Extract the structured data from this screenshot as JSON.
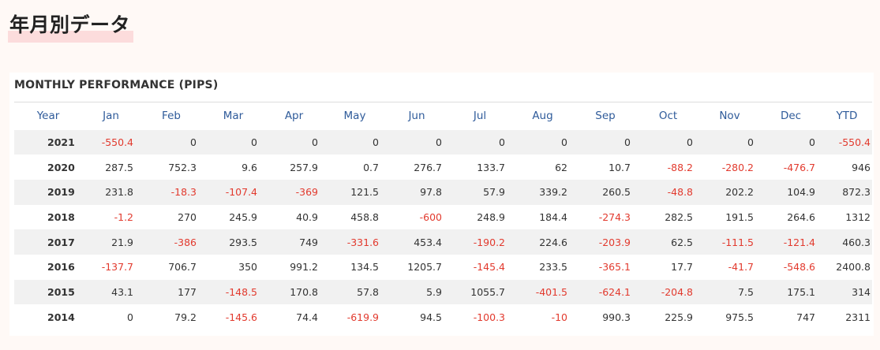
{
  "page_heading": "年月別データ",
  "panel_title": "MONTHLY PERFORMANCE (PIPS)",
  "colors": {
    "header_text": "#2f5b9a",
    "negative_text": "#e23a2e",
    "positive_text": "#333333",
    "stripe": "#f1f1f1",
    "heading_highlight": "#fcdcdc"
  },
  "table": {
    "columns": [
      "Year",
      "Jan",
      "Feb",
      "Mar",
      "Apr",
      "May",
      "Jun",
      "Jul",
      "Aug",
      "Sep",
      "Oct",
      "Nov",
      "Dec",
      "YTD"
    ],
    "rows": [
      [
        "2021",
        "-550.4",
        "0",
        "0",
        "0",
        "0",
        "0",
        "0",
        "0",
        "0",
        "0",
        "0",
        "0",
        "-550.4"
      ],
      [
        "2020",
        "287.5",
        "752.3",
        "9.6",
        "257.9",
        "0.7",
        "276.7",
        "133.7",
        "62",
        "10.7",
        "-88.2",
        "-280.2",
        "-476.7",
        "946"
      ],
      [
        "2019",
        "231.8",
        "-18.3",
        "-107.4",
        "-369",
        "121.5",
        "97.8",
        "57.9",
        "339.2",
        "260.5",
        "-48.8",
        "202.2",
        "104.9",
        "872.3"
      ],
      [
        "2018",
        "-1.2",
        "270",
        "245.9",
        "40.9",
        "458.8",
        "-600",
        "248.9",
        "184.4",
        "-274.3",
        "282.5",
        "191.5",
        "264.6",
        "1312"
      ],
      [
        "2017",
        "21.9",
        "-386",
        "293.5",
        "749",
        "-331.6",
        "453.4",
        "-190.2",
        "224.6",
        "-203.9",
        "62.5",
        "-111.5",
        "-121.4",
        "460.3"
      ],
      [
        "2016",
        "-137.7",
        "706.7",
        "350",
        "991.2",
        "134.5",
        "1205.7",
        "-145.4",
        "233.5",
        "-365.1",
        "17.7",
        "-41.7",
        "-548.6",
        "2400.8"
      ],
      [
        "2015",
        "43.1",
        "177",
        "-148.5",
        "170.8",
        "57.8",
        "5.9",
        "1055.7",
        "-401.5",
        "-624.1",
        "-204.8",
        "7.5",
        "175.1",
        "314"
      ],
      [
        "2014",
        "0",
        "79.2",
        "-145.6",
        "74.4",
        "-619.9",
        "94.5",
        "-100.3",
        "-10",
        "990.3",
        "225.9",
        "975.5",
        "747",
        "2311"
      ]
    ]
  }
}
